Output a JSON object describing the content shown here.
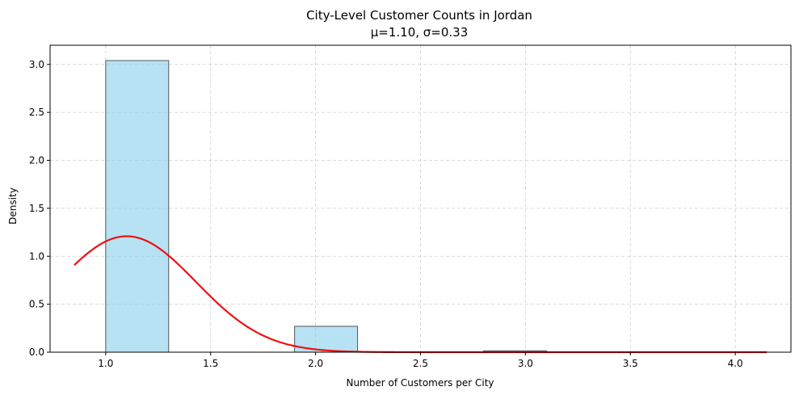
{
  "chart_data": {
    "type": "bar",
    "title": "City-Level Customer Counts in Jordan",
    "subtitle": "μ=1.10, σ=0.33",
    "xlabel": "Number of Customers per City",
    "ylabel": "Density",
    "xlim": [
      0.735,
      4.265
    ],
    "ylim": [
      0,
      3.2
    ],
    "xticks": [
      "1.0",
      "1.5",
      "2.0",
      "2.5",
      "3.0",
      "3.5",
      "4.0"
    ],
    "yticks": [
      "0.0",
      "0.5",
      "1.0",
      "1.5",
      "2.0",
      "2.5",
      "3.0"
    ],
    "grid": true,
    "histogram": {
      "bins": [
        [
          1.0,
          1.3
        ],
        [
          1.9,
          2.2
        ],
        [
          2.8,
          3.1
        ]
      ],
      "density": [
        3.04,
        0.27,
        0.015
      ],
      "fill": "#87CEEB",
      "edge": "#555555"
    },
    "normal_curve": {
      "mu": 1.1,
      "sigma": 0.33,
      "x_range": [
        0.85,
        4.15
      ],
      "color": "#ee1111"
    }
  }
}
